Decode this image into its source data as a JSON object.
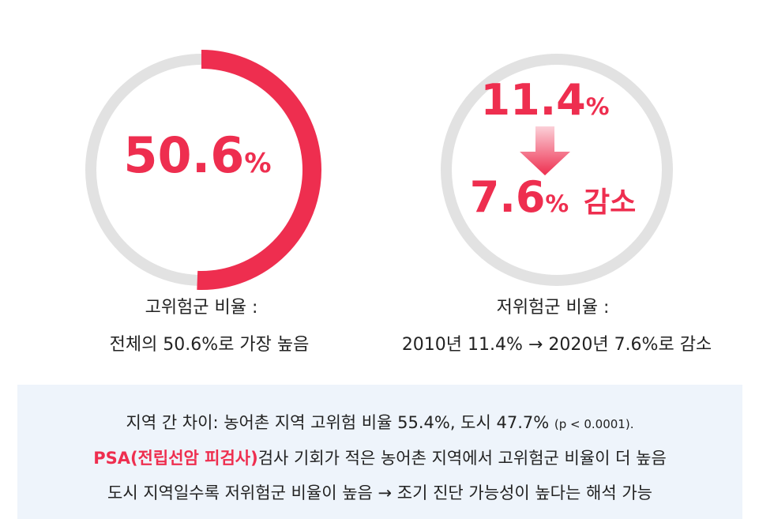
{
  "left_card": {
    "value": 50.6,
    "unit": "%",
    "caption": [
      "고위험군 비율 :",
      "전체의 50.6%로 가장 높음"
    ]
  },
  "right_card": {
    "from_value": 11.4,
    "from_unit": "%",
    "to_value": 7.6,
    "to_unit": "%",
    "to_suffix": "감소",
    "caption": [
      "저위험군 비율 :",
      "2010년 11.4% → 2020년 7.6%로 감소"
    ]
  },
  "summary": {
    "line1": "지역 간 차이: 농어촌 지역 고위험 비율 55.4%, 도시 47.7%",
    "line1_note": "(p < 0.0001).",
    "line2_highlight": "PSA(전립선암 피검사)",
    "line2": "검사 기회가 적은 농어촌 지역에서 고위험군 비율이 더 높음",
    "line3": "도시 지역일수록 저위험군 비율이 높음 → 조기 진단 가능성이 높다는 해석 가능"
  }
}
